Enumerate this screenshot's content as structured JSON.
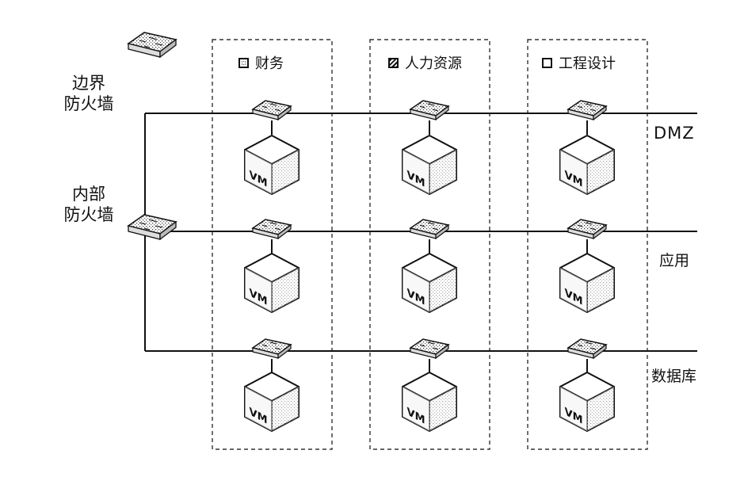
{
  "firewalls": {
    "border": {
      "line1": "边界",
      "line2": "防火墙"
    },
    "internal": {
      "line1": "内部",
      "line2": "防火墙"
    }
  },
  "departments": [
    {
      "label": "财务",
      "legend": "dotted"
    },
    {
      "label": "人力资源",
      "legend": "hatched"
    },
    {
      "label": "工程设计",
      "legend": "plain"
    }
  ],
  "networks": [
    "DMZ",
    "应用",
    "数据库"
  ],
  "vm_label": "VM",
  "colors": {
    "line": "#111111",
    "dash": "#333333",
    "background": "#ffffff"
  }
}
